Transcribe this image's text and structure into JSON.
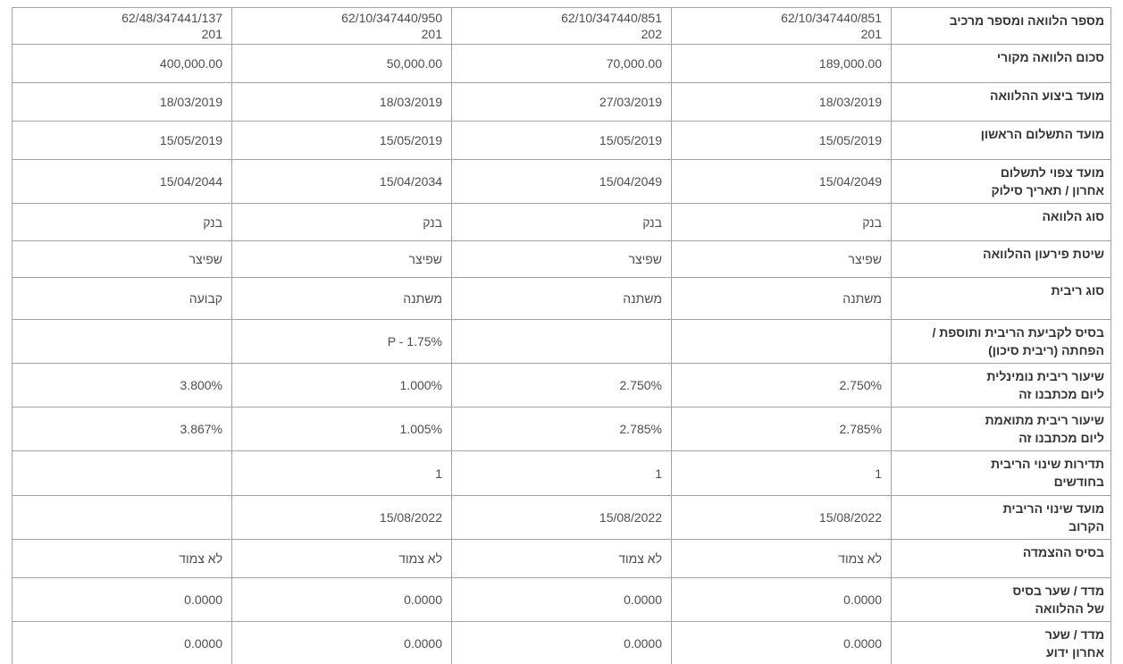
{
  "colors": {
    "background": "#ffffff",
    "border": "#a3a3a3",
    "label_text": "#333333",
    "value_text": "#4d4d4d"
  },
  "table": {
    "description_note": "values arrays are ordered right-to-left as displayed (index 0 = column nearest the Hebrew label column)",
    "rows": [
      {
        "label": "מספר הלוואה ומספר מרכיב",
        "values": [
          "62/10/347440/851\n201",
          "62/10/347440/851\n202",
          "62/10/347440/950\n201",
          "62/48/347441/137\n201"
        ]
      },
      {
        "label": "סכום הלוואה מקורי",
        "values": [
          "189,000.00",
          "70,000.00",
          "50,000.00",
          "400,000.00"
        ]
      },
      {
        "label": "מועד ביצוע ההלוואה",
        "values": [
          "18/03/2019",
          "27/03/2019",
          "18/03/2019",
          "18/03/2019"
        ]
      },
      {
        "label": "מועד התשלום הראשון",
        "values": [
          "15/05/2019",
          "15/05/2019",
          "15/05/2019",
          "15/05/2019"
        ]
      },
      {
        "label": "מועד צפוי לתשלום\nאחרון / תאריך סילוק",
        "values": [
          "15/04/2049",
          "15/04/2049",
          "15/04/2034",
          "15/04/2044"
        ]
      },
      {
        "label": "סוג הלוואה",
        "values": [
          "בנק",
          "בנק",
          "בנק",
          "בנק"
        ]
      },
      {
        "label": "שיטת פירעון ההלוואה",
        "values": [
          "שפיצר",
          "שפיצר",
          "שפיצר",
          "שפיצר"
        ]
      },
      {
        "label": "סוג ריבית",
        "values": [
          "משתנה",
          "משתנה",
          "משתנה",
          "קבועה"
        ]
      },
      {
        "label": "בסיס לקביעת הריבית ותוספת /\nהפחתה (ריבית סיכון)",
        "values": [
          "",
          "",
          "P - 1.75%",
          ""
        ]
      },
      {
        "label": "שיעור ריבית נומינלית\nליום מכתבנו זה",
        "values": [
          "2.750%",
          "2.750%",
          "1.000%",
          "3.800%"
        ]
      },
      {
        "label": "שיעור ריבית מתואמת\nליום מכתבנו זה",
        "values": [
          "2.785%",
          "2.785%",
          "1.005%",
          "3.867%"
        ]
      },
      {
        "label": "תדירות שינוי הריבית\nבחודשים",
        "values": [
          "1",
          "1",
          "1",
          ""
        ]
      },
      {
        "label": "מועד שינוי הריבית\nהקרוב",
        "values": [
          "15/08/2022",
          "15/08/2022",
          "15/08/2022",
          ""
        ]
      },
      {
        "label": "בסיס ההצמדה",
        "values": [
          "לא צמוד",
          "לא צמוד",
          "לא צמוד",
          "לא צמוד"
        ]
      },
      {
        "label": "מדד / שער בסיס\nשל ההלוואה",
        "values": [
          "0.0000",
          "0.0000",
          "0.0000",
          "0.0000"
        ]
      },
      {
        "label": "מדד / שער\nאחרון ידוע",
        "values": [
          "0.0000",
          "0.0000",
          "0.0000",
          "0.0000"
        ]
      }
    ]
  }
}
